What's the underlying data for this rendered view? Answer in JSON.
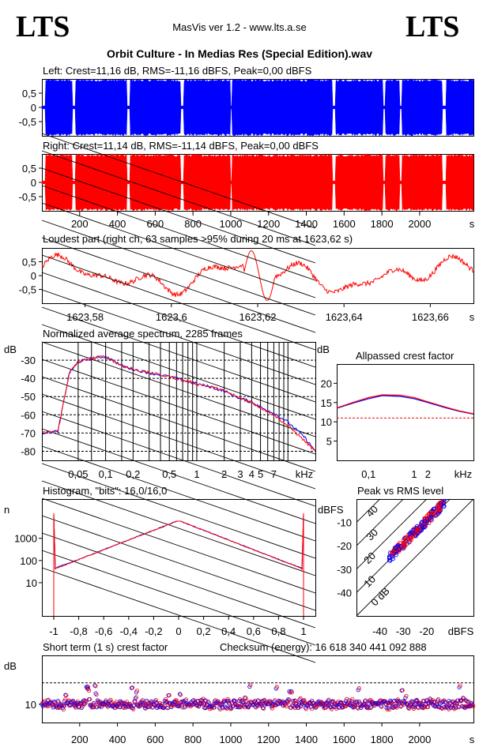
{
  "header": {
    "logo_left": "LTS",
    "logo_right": "LTS",
    "app": "MasVis ver 1.2 - www.lts.a.se",
    "file_title": "Orbit Culture - In Medias Res (Special Edition).wav"
  },
  "colors": {
    "left": "#0000ff",
    "right": "#ff0000",
    "grid": "#000000"
  },
  "chart_data": [
    {
      "id": "waveform-left",
      "type": "area",
      "title": "Left: Crest=11,16 dB, RMS=-11,16 dBFS, Peak=0,00 dBFS",
      "ylim": [
        -1,
        1
      ],
      "yticks": [
        "0,5",
        "0",
        "-0,5"
      ],
      "xlim": [
        0,
        2285
      ],
      "gaps_s": [
        [
          0,
          18
        ],
        [
          160,
          178
        ],
        [
          450,
          466
        ],
        [
          735,
          750
        ],
        [
          1000,
          1008
        ],
        [
          1540,
          1553
        ],
        [
          1805,
          1818
        ],
        [
          1895,
          1908
        ],
        [
          2120,
          2140
        ]
      ]
    },
    {
      "id": "waveform-right",
      "type": "area",
      "title": "Right: Crest=11,14 dB, RMS=-11,14 dBFS, Peak=0,00 dBFS",
      "ylim": [
        -1,
        1
      ],
      "yticks": [
        "0,5",
        "0",
        "-0,5"
      ],
      "xlim": [
        0,
        2285
      ],
      "xticks": [
        "200",
        "400",
        "600",
        "800",
        "1000",
        "1200",
        "1400",
        "1600",
        "1800",
        "2000"
      ],
      "x_unit": "s",
      "gaps_s": [
        [
          0,
          18
        ],
        [
          160,
          178
        ],
        [
          450,
          466
        ],
        [
          735,
          750
        ],
        [
          1000,
          1008
        ],
        [
          1540,
          1553
        ],
        [
          1805,
          1818
        ],
        [
          1895,
          1908
        ],
        [
          2120,
          2140
        ]
      ]
    },
    {
      "id": "loudest-part",
      "type": "line",
      "title": "Loudest part (right ch, 63 samples >95% during 20 ms at 1623,62 s)",
      "ylim": [
        -1,
        1
      ],
      "yticks": [
        "0,5",
        "0",
        "-0,5"
      ],
      "xlim": [
        1623.57,
        1623.67
      ],
      "xticks": [
        "1623,58",
        "1623,6",
        "1623,62",
        "1623,64",
        "1623,66"
      ],
      "x_unit": "s"
    },
    {
      "id": "spectrum",
      "type": "line",
      "title": "Normalized average spectrum, 2285 frames",
      "ylabel": "dB",
      "yticks": [
        "-30",
        "-40",
        "-50",
        "-60",
        "-70",
        "-80"
      ],
      "xticks": [
        "0,05",
        "0,1",
        "0,2",
        "0,5",
        "1",
        "2",
        "3",
        "4",
        "5",
        "7"
      ],
      "x_unit": "kHz",
      "x_khz": [
        0.02,
        0.03,
        0.04,
        0.05,
        0.07,
        0.1,
        0.15,
        0.2,
        0.3,
        0.5,
        0.7,
        1,
        1.5,
        2,
        3,
        4,
        5,
        7,
        10,
        15,
        20
      ],
      "left_db": [
        -70,
        -69,
        -37,
        -31,
        -29,
        -28,
        -33,
        -35,
        -37,
        -39,
        -41,
        -43,
        -45,
        -47,
        -51,
        -53,
        -56,
        -59,
        -64,
        -72,
        -80
      ],
      "right_db": [
        -70,
        -69,
        -37,
        -31,
        -29,
        -28,
        -33,
        -35,
        -37,
        -39,
        -41,
        -43,
        -45,
        -47,
        -51,
        -53,
        -56,
        -60,
        -66,
        -74,
        -80
      ]
    },
    {
      "id": "allpassed-crest",
      "type": "line",
      "title": "Allpassed crest factor",
      "ylabel": "dB",
      "yticks": [
        "20",
        "15",
        "10",
        "5"
      ],
      "ylim": [
        0,
        25
      ],
      "xticks": [
        "0,1",
        "1",
        "2",
        "kHz"
      ],
      "x_khz": [
        0.02,
        0.05,
        0.1,
        0.2,
        0.5,
        1,
        2,
        5,
        10,
        20
      ],
      "left_db": [
        13.5,
        15.0,
        16.0,
        16.8,
        16.6,
        16.0,
        15.0,
        13.6,
        12.7,
        12.0
      ],
      "right_db": [
        13.6,
        15.2,
        16.3,
        17.0,
        16.9,
        16.3,
        15.2,
        13.8,
        12.8,
        12.1
      ],
      "reference_db": 11
    },
    {
      "id": "histogram",
      "type": "line",
      "title": "Histogram, \"bits\": 16,0/16,0",
      "ylabel": "n",
      "yticks": [
        "1000",
        "100",
        "10"
      ],
      "xlim": [
        -1,
        1
      ],
      "xticks": [
        "-1",
        "-0,8",
        "-0,6",
        "-0,4",
        "-0,2",
        "0",
        "0,2",
        "0,4",
        "0,6",
        "0,8",
        "1"
      ]
    },
    {
      "id": "peak-vs-rms",
      "type": "scatter",
      "title": "Peak vs RMS level",
      "ylabel": "dBFS",
      "yticks": [
        "-10",
        "-20",
        "-30",
        "-40"
      ],
      "xlabel": "dBFS",
      "xticks": [
        "-40",
        "-30",
        "-20"
      ],
      "diagonal_labels": [
        "0 dB",
        "10",
        "20",
        "30",
        "40"
      ]
    },
    {
      "id": "short-term-crest",
      "type": "scatter",
      "title": "Short term (1 s) crest factor",
      "checksum": "Checksum (energy):  16 618 340 441 092 888",
      "ylabel": "dB",
      "yticks": [
        "10"
      ],
      "xticks": [
        "200",
        "400",
        "600",
        "800",
        "1000",
        "1200",
        "1400",
        "1600",
        "1800",
        "2000"
      ],
      "x_unit": "s"
    }
  ]
}
